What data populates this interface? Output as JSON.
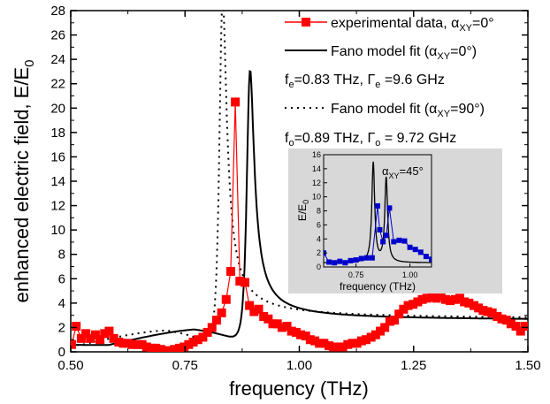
{
  "chart_data": {
    "type": "line",
    "xlabel": "frequency (THz)",
    "ylabel": "enhanced electric field, E/E",
    "ylabel_sub": "0",
    "xlim": [
      0.5,
      1.5
    ],
    "ylim": [
      0,
      28
    ],
    "x_ticks": [
      0.5,
      0.75,
      1.0,
      1.25,
      1.5
    ],
    "x_tick_labels": [
      "0.50",
      "0.75",
      "1.00",
      "1.25",
      "1.50"
    ],
    "y_ticks": [
      0,
      2,
      4,
      6,
      8,
      10,
      12,
      14,
      16,
      18,
      20,
      22,
      24,
      26,
      28
    ],
    "y_tick_labels": [
      "0",
      "2",
      "4",
      "6",
      "8",
      "10",
      "12",
      "14",
      "16",
      "18",
      "20",
      "22",
      "24",
      "26",
      "28"
    ],
    "grid": false,
    "legend_position": "top-right",
    "legend": [
      {
        "text": "experimental data, α",
        "sub": "XY",
        "suffix": "=0°",
        "style": "red-square-line"
      },
      {
        "text": "Fano model fit (α",
        "sub": "XY",
        "suffix": "=0°)",
        "style": "black-solid"
      },
      {
        "text": "Fano model fit (α",
        "sub": "XY",
        "suffix": "=90°)",
        "style": "black-dotted"
      }
    ],
    "annotations": [
      {
        "text": "f",
        "sub": "e",
        "text2": "=0.83 THz, Γ",
        "sub2": "e",
        "text3": " =9.6 GHz"
      },
      {
        "text": "f",
        "sub": "o",
        "text2": "=0.89 THz, Γ",
        "sub2": "o",
        "text3": " = 9.72 GHz"
      }
    ],
    "series": [
      {
        "name": "experimental data, αXY=0°",
        "color": "#ff0000",
        "marker": "square",
        "x": [
          0.502,
          0.512,
          0.523,
          0.533,
          0.543,
          0.554,
          0.564,
          0.574,
          0.584,
          0.594,
          0.605,
          0.615,
          0.625,
          0.635,
          0.646,
          0.656,
          0.666,
          0.676,
          0.686,
          0.697,
          0.707,
          0.717,
          0.727,
          0.738,
          0.748,
          0.758,
          0.768,
          0.778,
          0.789,
          0.799,
          0.809,
          0.819,
          0.83,
          0.84,
          0.85,
          0.86,
          0.87,
          0.881,
          0.891,
          0.901,
          0.911,
          0.922,
          0.932,
          0.942,
          0.952,
          0.962,
          0.973,
          0.983,
          0.993,
          1.003,
          1.014,
          1.024,
          1.034,
          1.044,
          1.054,
          1.065,
          1.075,
          1.085,
          1.095,
          1.106,
          1.116,
          1.126,
          1.136,
          1.146,
          1.157,
          1.167,
          1.177,
          1.187,
          1.198,
          1.208,
          1.218,
          1.228,
          1.238,
          1.249,
          1.259,
          1.269,
          1.279,
          1.29,
          1.3,
          1.31,
          1.32,
          1.33,
          1.341,
          1.351,
          1.361,
          1.371,
          1.382,
          1.392,
          1.402,
          1.412,
          1.422,
          1.433,
          1.443,
          1.453,
          1.463,
          1.474,
          1.484,
          1.494
        ],
        "y": [
          0.6,
          2.1,
          1.1,
          1.5,
          1.1,
          1.4,
          1.0,
          1.5,
          1.7,
          1.1,
          0.8,
          0.7,
          0.7,
          0.6,
          0.6,
          0.6,
          0.4,
          0.3,
          0.3,
          0.2,
          0.1,
          0.1,
          0.2,
          0.3,
          0.4,
          0.6,
          0.8,
          1.0,
          1.2,
          1.6,
          2.0,
          2.6,
          3.2,
          4.3,
          6.6,
          20.5,
          5.8,
          5.7,
          3.8,
          3.3,
          3.5,
          2.9,
          2.7,
          2.3,
          2.3,
          2.0,
          2.1,
          1.7,
          1.6,
          1.4,
          1.3,
          1.0,
          0.9,
          0.7,
          0.7,
          0.5,
          0.4,
          0.4,
          0.4,
          0.6,
          0.7,
          0.7,
          0.9,
          1.0,
          1.2,
          1.4,
          1.7,
          2.0,
          2.5,
          2.6,
          3.1,
          3.5,
          3.8,
          3.9,
          4.1,
          4.3,
          4.4,
          4.5,
          4.4,
          4.6,
          4.3,
          4.2,
          4.3,
          4.4,
          4.1,
          4.0,
          3.8,
          3.6,
          3.4,
          3.3,
          3.2,
          2.9,
          2.7,
          2.6,
          2.3,
          2.1,
          1.7,
          2.1
        ]
      },
      {
        "name": "Fano model fit (αXY=0°)",
        "color": "#000000",
        "style": "solid",
        "fano": {
          "f0": 0.89,
          "gamma": 0.00972,
          "amp": 21.9,
          "offset": 1.25
        }
      },
      {
        "name": "Fano model fit (αXY=90°)",
        "color": "#000000",
        "style": "dotted",
        "fano": {
          "f0": 0.83,
          "gamma": 0.0096,
          "amp": 28.0,
          "offset": 1.0
        }
      }
    ],
    "inset": {
      "xlabel": "frequency (THz)",
      "ylabel": "E/E",
      "ylabel_sub": "0",
      "xlim": [
        0.6,
        1.1
      ],
      "ylim": [
        0,
        16
      ],
      "x_ticks": [
        0.75,
        1.0
      ],
      "x_tick_labels": [
        "0.75",
        "1.00"
      ],
      "y_ticks": [
        0,
        2,
        4,
        6,
        8,
        10,
        12,
        14,
        16
      ],
      "y_tick_labels": [
        "0",
        "2",
        "4",
        "6",
        "8",
        "10",
        "12",
        "14",
        "16"
      ],
      "label_text": "α",
      "label_sub": "XY",
      "label_suffix": "=45°",
      "background": "#d8d8d8",
      "series": [
        {
          "name": "experimental data, αXY=45°",
          "color": "#0000cc",
          "marker": "square",
          "x": [
            0.6,
            0.625,
            0.65,
            0.675,
            0.7,
            0.725,
            0.75,
            0.775,
            0.8,
            0.825,
            0.85,
            0.86,
            0.875,
            0.89,
            0.905,
            0.925,
            0.95,
            0.975,
            1.0,
            1.025,
            1.05,
            1.075,
            1.1
          ],
          "y": [
            2.0,
            0.7,
            0.6,
            0.8,
            0.6,
            0.9,
            1.0,
            1.2,
            1.3,
            1.3,
            8.7,
            5.3,
            3.6,
            4.5,
            8.4,
            3.6,
            3.8,
            3.7,
            2.8,
            2.5,
            2.1,
            1.5,
            1.1
          ]
        },
        {
          "name": "Fano fit αXY=45°",
          "color": "#000000",
          "style": "solid",
          "peaks": [
            {
              "f0": 0.83,
              "gamma": 0.008,
              "amp": 14.2
            },
            {
              "f0": 0.89,
              "gamma": 0.008,
              "amp": 12.0
            }
          ]
        }
      ]
    }
  }
}
